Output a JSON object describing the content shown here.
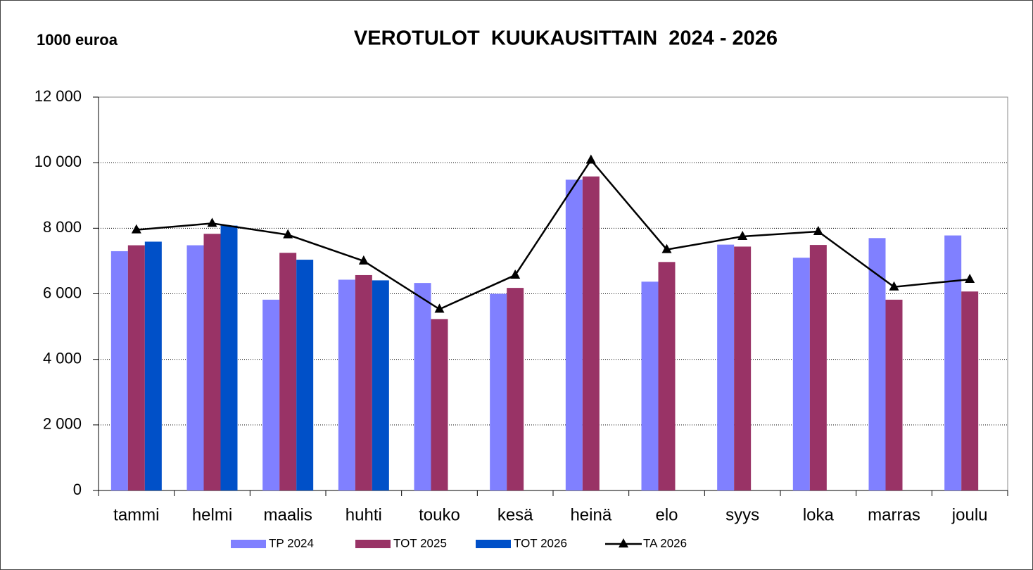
{
  "chart_data": {
    "type": "bar",
    "title": "VEROTULOT  KUUKAUSITTAIN  2024 - 2026",
    "y_label": "1000 euroa",
    "categories": [
      "tammi",
      "helmi",
      "maalis",
      "huhti",
      "touko",
      "kesä",
      "heinä",
      "elo",
      "syys",
      "loka",
      "marras",
      "joulu"
    ],
    "series": [
      {
        "name": "TP 2024",
        "color": "#8080ff",
        "values": [
          7300,
          7480,
          5820,
          6430,
          6330,
          6000,
          9480,
          6370,
          7500,
          7100,
          7700,
          7780
        ]
      },
      {
        "name": "TOT 2025",
        "color": "#993366",
        "values": [
          7480,
          7830,
          7250,
          6570,
          5230,
          6180,
          9580,
          6970,
          7440,
          7490,
          5820,
          6070
        ]
      },
      {
        "name": "TOT 2026",
        "color": "#0050c8",
        "values": [
          7590,
          8080,
          7040,
          6410,
          null,
          null,
          null,
          null,
          null,
          null,
          null,
          null
        ]
      },
      {
        "name": "TA 2026",
        "color": "#000000",
        "type": "line",
        "values": [
          7950,
          8150,
          7800,
          7000,
          5530,
          6570,
          10080,
          7350,
          7750,
          7900,
          6210,
          6440
        ]
      }
    ],
    "ylim": [
      0,
      12000
    ],
    "yticks": [
      0,
      {
        "value": 2000,
        "label": "2 000"
      },
      {
        "value": 4000,
        "label": "4 000"
      },
      {
        "value": 6000,
        "label": "6 000"
      },
      {
        "value": 8000,
        "label": "8 000"
      },
      {
        "value": 10000,
        "label": "10 000"
      },
      {
        "value": 12000,
        "label": "12 000"
      }
    ],
    "grid": true,
    "legend": "bottom"
  }
}
